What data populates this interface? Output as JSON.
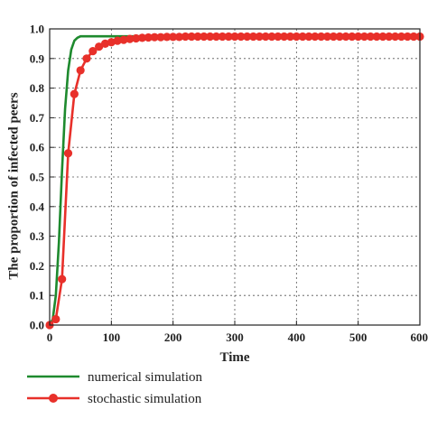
{
  "chart_data": {
    "type": "line",
    "title": "",
    "xlabel": "Time",
    "ylabel": "The proportion of infected peers",
    "xlim": [
      0,
      600
    ],
    "ylim": [
      0,
      1.0
    ],
    "xticks": [
      0,
      100,
      200,
      300,
      400,
      500,
      600
    ],
    "yticks": [
      0.0,
      0.1,
      0.2,
      0.3,
      0.4,
      0.5,
      0.6,
      0.7,
      0.8,
      0.9,
      1.0
    ],
    "xtick_labels": [
      "0",
      "100",
      "200",
      "300",
      "400",
      "500",
      "600"
    ],
    "ytick_labels": [
      "0.0",
      "0.1",
      "0.2",
      "0.3",
      "0.4",
      "0.5",
      "0.6",
      "0.7",
      "0.8",
      "0.9",
      "1.0"
    ],
    "grid": true,
    "legend_position": "bottom",
    "series": [
      {
        "name": "numerical simulation",
        "color": "#1e8a2e",
        "marker": "none",
        "x": [
          0,
          5,
          10,
          15,
          20,
          25,
          30,
          35,
          40,
          45,
          50,
          55,
          60,
          70,
          80,
          100,
          150,
          200,
          300,
          400,
          500,
          600
        ],
        "y": [
          0.0,
          0.02,
          0.1,
          0.28,
          0.52,
          0.73,
          0.86,
          0.93,
          0.96,
          0.97,
          0.975,
          0.975,
          0.975,
          0.975,
          0.975,
          0.975,
          0.975,
          0.975,
          0.975,
          0.975,
          0.975,
          0.975
        ]
      },
      {
        "name": "stochastic simulation",
        "color": "#e8302a",
        "marker": "circle",
        "x": [
          0,
          10,
          20,
          30,
          40,
          50,
          60,
          70,
          80,
          90,
          100,
          110,
          120,
          130,
          140,
          150,
          160,
          170,
          180,
          190,
          200,
          210,
          220,
          230,
          240,
          250,
          260,
          270,
          280,
          290,
          300,
          310,
          320,
          330,
          340,
          350,
          360,
          370,
          380,
          390,
          400,
          410,
          420,
          430,
          440,
          450,
          460,
          470,
          480,
          490,
          500,
          510,
          520,
          530,
          540,
          550,
          560,
          570,
          580,
          590,
          600
        ],
        "y": [
          0.0,
          0.02,
          0.155,
          0.58,
          0.78,
          0.86,
          0.9,
          0.925,
          0.94,
          0.95,
          0.955,
          0.96,
          0.963,
          0.966,
          0.968,
          0.97,
          0.971,
          0.972,
          0.972,
          0.973,
          0.973,
          0.973,
          0.974,
          0.974,
          0.974,
          0.974,
          0.974,
          0.974,
          0.974,
          0.974,
          0.974,
          0.974,
          0.974,
          0.974,
          0.974,
          0.974,
          0.974,
          0.974,
          0.974,
          0.974,
          0.974,
          0.974,
          0.974,
          0.974,
          0.974,
          0.974,
          0.974,
          0.974,
          0.974,
          0.974,
          0.974,
          0.974,
          0.974,
          0.974,
          0.974,
          0.974,
          0.974,
          0.974,
          0.974,
          0.974,
          0.974
        ]
      }
    ]
  }
}
